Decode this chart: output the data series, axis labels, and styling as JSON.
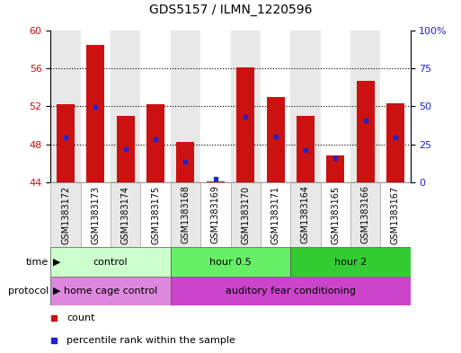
{
  "title": "GDS5157 / ILMN_1220596",
  "samples": [
    "GSM1383172",
    "GSM1383173",
    "GSM1383174",
    "GSM1383175",
    "GSM1383168",
    "GSM1383169",
    "GSM1383170",
    "GSM1383171",
    "GSM1383164",
    "GSM1383165",
    "GSM1383166",
    "GSM1383167"
  ],
  "bar_heights": [
    52.2,
    58.5,
    51.0,
    52.2,
    48.2,
    44.1,
    56.1,
    53.0,
    51.0,
    46.8,
    54.7,
    52.3
  ],
  "blue_dot_values": [
    48.7,
    51.9,
    47.5,
    48.5,
    46.2,
    44.4,
    50.9,
    48.8,
    47.4,
    46.5,
    50.5,
    48.7
  ],
  "ylim": [
    44,
    60
  ],
  "yticks_left": [
    44,
    48,
    52,
    56,
    60
  ],
  "yticks_right_labels": [
    "0",
    "25",
    "50",
    "75",
    "100%"
  ],
  "right_tick_positions": [
    44,
    48,
    52,
    56,
    60
  ],
  "bar_color": "#cc1111",
  "dot_color": "#2222cc",
  "time_groups": [
    {
      "label": "control",
      "start": 0,
      "end": 4,
      "color": "#ccffcc"
    },
    {
      "label": "hour 0.5",
      "start": 4,
      "end": 8,
      "color": "#66ee66"
    },
    {
      "label": "hour 2",
      "start": 8,
      "end": 12,
      "color": "#33cc33"
    }
  ],
  "protocol_groups": [
    {
      "label": "home cage control",
      "start": 0,
      "end": 4,
      "color": "#dd88dd"
    },
    {
      "label": "auditory fear conditioning",
      "start": 4,
      "end": 12,
      "color": "#cc44cc"
    }
  ],
  "time_label": "time",
  "protocol_label": "protocol",
  "legend_count": "count",
  "legend_percentile": "percentile rank within the sample",
  "background_color": "#ffffff",
  "tick_label_color_left": "#cc1111",
  "tick_label_color_right": "#2222cc",
  "col_bg_even": "#e8e8e8",
  "col_bg_odd": "#ffffff"
}
